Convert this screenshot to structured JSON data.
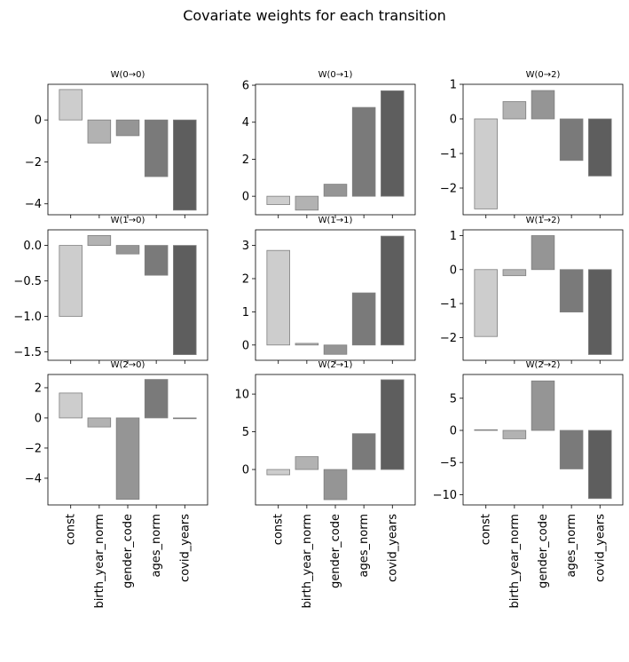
{
  "title": "Covariate weights for each transition",
  "chart_data": {
    "type": "bar",
    "categories": [
      "const",
      "birth_year_norm",
      "gender_code",
      "ages_norm",
      "covid_years"
    ],
    "colors": [
      "#cdcdcd",
      "#b2b2b2",
      "#959595",
      "#7a7a7a",
      "#5e5e5e"
    ],
    "edge_color": "#7f7f7f",
    "panels": [
      {
        "title": "W(0→0)",
        "values": [
          1.45,
          -1.1,
          -0.75,
          -2.7,
          -4.3
        ],
        "ylim": [
          -4.52,
          1.7
        ],
        "yticks": [
          -4,
          -2,
          0
        ],
        "ytick_labels": [
          "−4",
          "−2",
          "0"
        ]
      },
      {
        "title": "W(0→1)",
        "values": [
          -0.45,
          -0.75,
          0.65,
          4.8,
          5.7
        ],
        "ylim": [
          -1.0,
          6.05
        ],
        "yticks": [
          0,
          2,
          4,
          6
        ],
        "ytick_labels": [
          "0",
          "2",
          "4",
          "6"
        ]
      },
      {
        "title": "W(0→2)",
        "values": [
          -2.6,
          0.5,
          0.82,
          -1.2,
          -1.65
        ],
        "ylim": [
          -2.77,
          1.0
        ],
        "yticks": [
          -2,
          -1,
          0,
          1
        ],
        "ytick_labels": [
          "−2",
          "−1",
          "0",
          "1"
        ]
      },
      {
        "title": "W(1→0)",
        "values": [
          -1.0,
          0.14,
          -0.12,
          -0.42,
          -1.54
        ],
        "ylim": [
          -1.62,
          0.22
        ],
        "yticks": [
          -1.5,
          -1.0,
          -0.5,
          0.0
        ],
        "ytick_labels": [
          "−1.5",
          "−1.0",
          "−0.5",
          "0.0"
        ]
      },
      {
        "title": "W(1→1)",
        "values": [
          2.85,
          0.05,
          -0.28,
          1.57,
          3.28
        ],
        "ylim": [
          -0.46,
          3.47
        ],
        "yticks": [
          0,
          1,
          2,
          3
        ],
        "ytick_labels": [
          "0",
          "1",
          "2",
          "3"
        ]
      },
      {
        "title": "W(1→2)",
        "values": [
          -1.97,
          -0.18,
          1.0,
          -1.25,
          -2.5
        ],
        "ylim": [
          -2.67,
          1.17
        ],
        "yticks": [
          -2,
          -1,
          0,
          1
        ],
        "ytick_labels": [
          "−2",
          "−1",
          "0",
          "1"
        ]
      },
      {
        "title": "W(2→0)",
        "values": [
          1.65,
          -0.6,
          -5.4,
          2.55,
          -0.05
        ],
        "ylim": [
          -5.77,
          2.88
        ],
        "yticks": [
          -4,
          -2,
          0,
          2
        ],
        "ytick_labels": [
          "−4",
          "−2",
          "0",
          "2"
        ]
      },
      {
        "title": "W(2→1)",
        "values": [
          -0.7,
          1.7,
          -4.0,
          4.75,
          11.9
        ],
        "ylim": [
          -4.7,
          12.6
        ],
        "yticks": [
          0,
          5,
          10
        ],
        "ytick_labels": [
          "0",
          "5",
          "10"
        ]
      },
      {
        "title": "W(2→2)",
        "values": [
          0.1,
          -1.3,
          7.7,
          -6.0,
          -10.6
        ],
        "ylim": [
          -11.6,
          8.7
        ],
        "yticks": [
          -10,
          -5,
          0,
          5
        ],
        "ytick_labels": [
          "−10",
          "−5",
          "0",
          "5"
        ]
      }
    ]
  }
}
